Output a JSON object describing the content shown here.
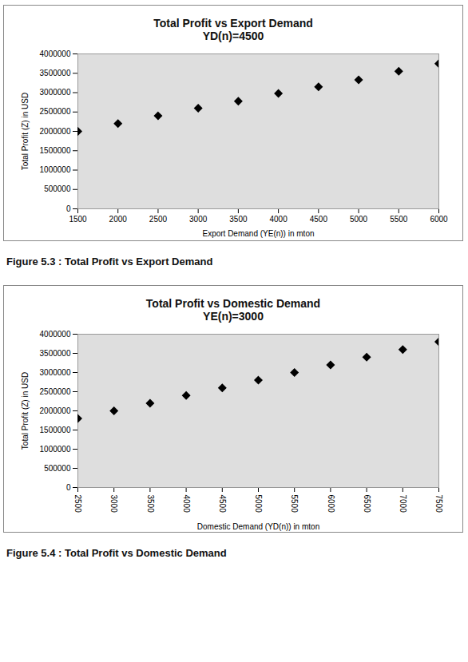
{
  "chart_data": [
    {
      "type": "scatter",
      "title": "Total Profit vs Export Demand",
      "subtitle": "YD(n)=4500",
      "caption": "Figure 5.3 : Total Profit vs Export Demand",
      "x_label": "Export Demand (YE(n)) in mton",
      "y_label": "Total Profit (Z) in USD",
      "x": [
        1500,
        2000,
        2500,
        3000,
        3500,
        4000,
        4500,
        5000,
        5500,
        6000
      ],
      "values": [
        2000000,
        2200000,
        2400000,
        2600000,
        2780000,
        2980000,
        3150000,
        3330000,
        3550000,
        3750000
      ],
      "color": "#000000",
      "marker": "diamond",
      "xlim": [
        1500,
        6000
      ],
      "xticks": [
        1500,
        2000,
        2500,
        3000,
        3500,
        4000,
        4500,
        5000,
        5500,
        6000
      ],
      "ylim": [
        0,
        4000000
      ],
      "yticks": [
        0,
        500000,
        1000000,
        1500000,
        2000000,
        2500000,
        3000000,
        3500000,
        4000000
      ],
      "grid": false
    },
    {
      "type": "scatter",
      "title": "Total Profit vs Domestic Demand",
      "subtitle": "YE(n)=3000",
      "caption": "Figure 5.4 : Total Profit vs Domestic Demand",
      "x_label": "Domestic Demand (YD(n)) in mton",
      "y_label": "Total Profit (Z) in USD",
      "x": [
        2500,
        3000,
        3500,
        4000,
        4500,
        5000,
        5500,
        6000,
        6500,
        7000,
        7500
      ],
      "values": [
        1800000,
        2000000,
        2200000,
        2400000,
        2600000,
        2800000,
        3000000,
        3200000,
        3400000,
        3600000,
        3800000
      ],
      "color": "#000000",
      "marker": "diamond",
      "xlim": [
        2500,
        7500
      ],
      "xticks": [
        2500,
        3000,
        3500,
        4000,
        4500,
        5000,
        5500,
        6000,
        6500,
        7000,
        7500
      ],
      "ylim": [
        0,
        4000000
      ],
      "yticks": [
        0,
        500000,
        1000000,
        1500000,
        2000000,
        2500000,
        3000000,
        3500000,
        4000000
      ],
      "grid": false
    }
  ]
}
